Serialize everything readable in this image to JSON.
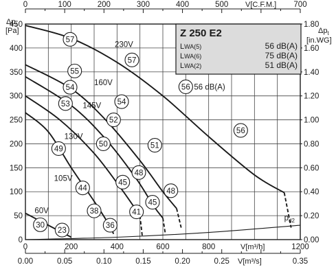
{
  "chart_data": {
    "type": "line",
    "title": "Z 250 E2",
    "sound_table": [
      {
        "label": "LWA(5)",
        "value": "56 dB(A)"
      },
      {
        "label": "LWA(6)",
        "value": "75 dB(A)"
      },
      {
        "label": "LWA(2)",
        "value": "51 dB(A)"
      }
    ],
    "axes": {
      "x_bottom": {
        "label": "V[m³/h]",
        "range": [
          0,
          1200
        ],
        "ticks": [
          "0",
          "200",
          "400",
          "600",
          "800",
          "1200"
        ]
      },
      "x_top": {
        "label": "V[C.F.M.]",
        "range": [
          0,
          700
        ],
        "ticks": [
          "0",
          "100",
          "200",
          "300",
          "400",
          "500",
          "700"
        ]
      },
      "x_bottom2": {
        "label": "V[m³/s]",
        "range": [
          0,
          0.35
        ],
        "ticks": [
          "0.00",
          "0.05",
          "0.10",
          "0.15",
          "0.20",
          "0.25",
          "0.35"
        ]
      },
      "y_left": {
        "label_main": "Δp",
        "label_sub": "t",
        "unit": "[Pa]",
        "range": [
          0,
          450
        ],
        "ticks": [
          "0",
          "50",
          "100",
          "150",
          "200",
          "250",
          "300",
          "350",
          "400",
          "450"
        ]
      },
      "y_right": {
        "label_main": "Δp",
        "label_sub": "t",
        "unit": "[in.WG]",
        "range": [
          0,
          1.8
        ],
        "ticks": [
          "0.00",
          "0.20",
          "0.40",
          "0.60",
          "0.80",
          "1.00",
          "1.20",
          "1.40",
          "1.60",
          "1.80"
        ]
      },
      "grid": true
    },
    "series": [
      {
        "name": "230V",
        "points": [
          [
            0,
            447
          ],
          [
            200,
            420
          ],
          [
            400,
            370
          ],
          [
            600,
            300
          ],
          [
            800,
            215
          ],
          [
            1000,
            135
          ],
          [
            1130,
            98
          ]
        ],
        "extension": [
          [
            1130,
            98
          ],
          [
            1160,
            25
          ]
        ]
      },
      {
        "name": "160V",
        "points": [
          [
            0,
            365
          ],
          [
            200,
            315
          ],
          [
            350,
            250
          ],
          [
            500,
            165
          ],
          [
            600,
            100
          ],
          [
            660,
            65
          ]
        ],
        "extension": [
          [
            660,
            65
          ],
          [
            680,
            25
          ]
        ]
      },
      {
        "name": "145V",
        "points": [
          [
            0,
            340
          ],
          [
            200,
            280
          ],
          [
            350,
            210
          ],
          [
            480,
            130
          ],
          [
            560,
            70
          ],
          [
            600,
            45
          ]
        ],
        "extension": [
          [
            600,
            45
          ],
          [
            610,
            15
          ]
        ]
      },
      {
        "name": "130V",
        "points": [
          [
            0,
            300
          ],
          [
            150,
            250
          ],
          [
            300,
            180
          ],
          [
            420,
            105
          ],
          [
            500,
            50
          ]
        ],
        "extension": [
          [
            500,
            50
          ],
          [
            510,
            8
          ]
        ]
      },
      {
        "name": "105V",
        "points": [
          [
            0,
            265
          ],
          [
            100,
            225
          ],
          [
            200,
            150
          ],
          [
            300,
            80
          ],
          [
            360,
            35
          ],
          [
            385,
            12
          ]
        ],
        "extension": []
      },
      {
        "name": "60V",
        "points": [
          [
            0,
            55
          ],
          [
            80,
            35
          ],
          [
            160,
            15
          ],
          [
            200,
            5
          ]
        ],
        "extension": []
      },
      {
        "name": "pd2",
        "points": [
          [
            0,
            0
          ],
          [
            400,
            5
          ],
          [
            800,
            15
          ],
          [
            1200,
            30
          ]
        ],
        "extension": []
      }
    ],
    "curve_labels": [
      {
        "text": "230V",
        "x": 390,
        "y": 408
      },
      {
        "text": "160V",
        "x": 300,
        "y": 328
      },
      {
        "text": "145V",
        "x": 250,
        "y": 280
      },
      {
        "text": "130V",
        "x": 170,
        "y": 216
      },
      {
        "text": "105V",
        "x": 125,
        "y": 128
      },
      {
        "text": "60V",
        "x": 40,
        "y": 61
      },
      {
        "text": "56 dB(A)",
        "x": 700,
        "y": 319
      },
      {
        "text": "p",
        "sub": "d2",
        "x": 1130,
        "y": 46
      }
    ],
    "markers": [
      {
        "value": "57",
        "x": 195,
        "y": 418
      },
      {
        "value": "57",
        "x": 465,
        "y": 375
      },
      {
        "value": "55",
        "x": 215,
        "y": 352
      },
      {
        "value": "54",
        "x": 195,
        "y": 318
      },
      {
        "value": "53",
        "x": 175,
        "y": 284
      },
      {
        "value": "54",
        "x": 420,
        "y": 288
      },
      {
        "value": "52",
        "x": 385,
        "y": 250
      },
      {
        "value": "50",
        "x": 340,
        "y": 200
      },
      {
        "value": "51",
        "x": 565,
        "y": 197
      },
      {
        "value": "49",
        "x": 145,
        "y": 190
      },
      {
        "value": "48",
        "x": 495,
        "y": 140
      },
      {
        "value": "45",
        "x": 425,
        "y": 120
      },
      {
        "value": "44",
        "x": 250,
        "y": 108
      },
      {
        "value": "48",
        "x": 635,
        "y": 102
      },
      {
        "value": "45",
        "x": 555,
        "y": 78
      },
      {
        "value": "38",
        "x": 300,
        "y": 60
      },
      {
        "value": "41",
        "x": 485,
        "y": 58
      },
      {
        "value": "36",
        "x": 370,
        "y": 30
      },
      {
        "value": "30",
        "x": 65,
        "y": 31
      },
      {
        "value": "23",
        "x": 160,
        "y": 20
      },
      {
        "value": "56",
        "x": 700,
        "y": 319
      },
      {
        "value": "56",
        "x": 940,
        "y": 228
      }
    ]
  }
}
